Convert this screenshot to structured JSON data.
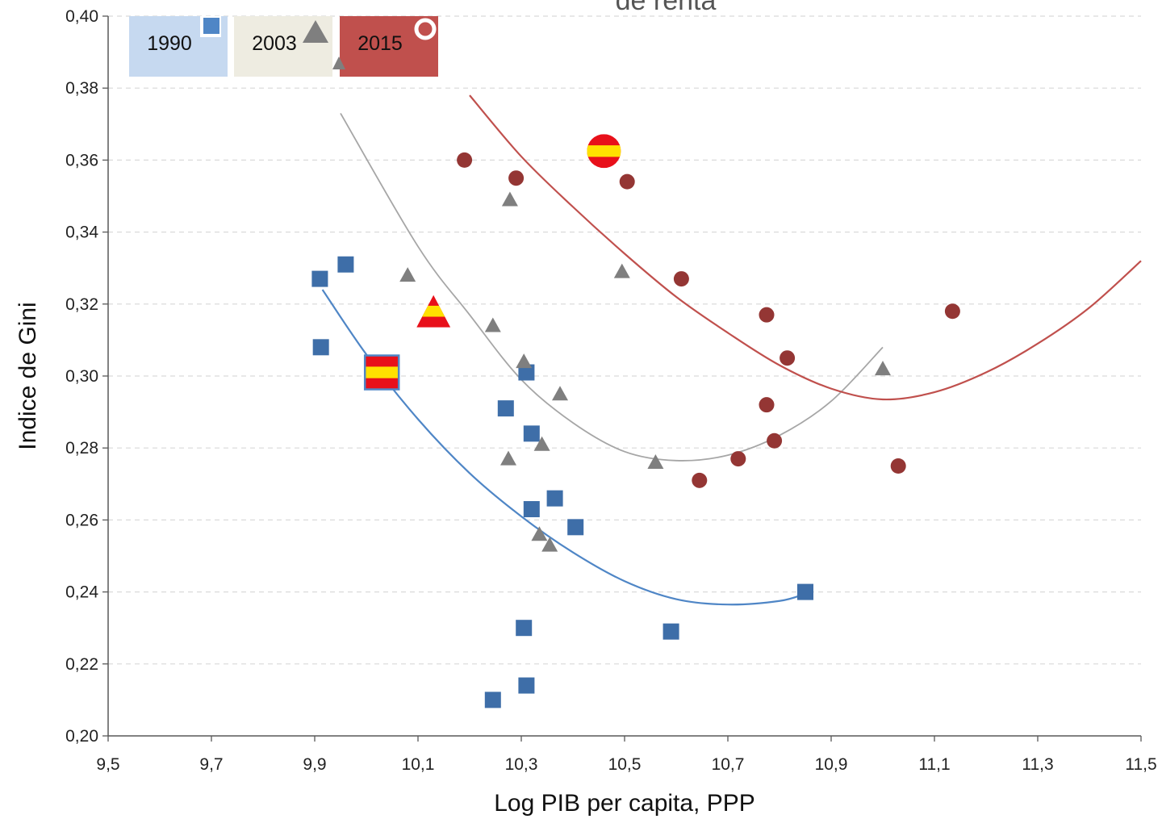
{
  "chart_data": {
    "type": "scatter",
    "title": "de renta",
    "xlabel": "Log PIB per capita, PPP",
    "ylabel": "Indice de Gini",
    "xlim": [
      9.5,
      11.5
    ],
    "ylim": [
      0.2,
      0.4
    ],
    "x_ticks": [
      "9,5",
      "9,7",
      "9,9",
      "10,1",
      "10,3",
      "10,5",
      "10,7",
      "10,9",
      "11,1",
      "11,3",
      "11,5"
    ],
    "y_ticks": [
      "0,20",
      "0,22",
      "0,24",
      "0,26",
      "0,28",
      "0,30",
      "0,32",
      "0,34",
      "0,36",
      "0,38",
      "0,40"
    ],
    "grid": "horizontal dashed",
    "legend_position": "top-left",
    "series": [
      {
        "name": "1990",
        "marker": "square",
        "color": "#3e6ea8",
        "points": [
          [
            9.91,
            0.327
          ],
          [
            9.96,
            0.331
          ],
          [
            9.912,
            0.308
          ],
          [
            10.31,
            0.301
          ],
          [
            10.27,
            0.291
          ],
          [
            10.32,
            0.284
          ],
          [
            10.365,
            0.266
          ],
          [
            10.32,
            0.263
          ],
          [
            10.405,
            0.258
          ],
          [
            10.85,
            0.24
          ],
          [
            10.305,
            0.23
          ],
          [
            10.59,
            0.229
          ],
          [
            10.31,
            0.214
          ],
          [
            10.245,
            0.21
          ]
        ],
        "trend": {
          "color": "#4f86c6",
          "x_range": [
            9.915,
            10.85
          ],
          "points": [
            [
              9.915,
              0.324
            ],
            [
              10.0,
              0.306
            ],
            [
              10.1,
              0.288
            ],
            [
              10.2,
              0.273
            ],
            [
              10.3,
              0.261
            ],
            [
              10.4,
              0.251
            ],
            [
              10.5,
              0.243
            ],
            [
              10.6,
              0.238
            ],
            [
              10.7,
              0.2365
            ],
            [
              10.8,
              0.2375
            ],
            [
              10.85,
              0.2395
            ]
          ]
        }
      },
      {
        "name": "2003",
        "marker": "triangle",
        "color": "#7f7f7f",
        "points": [
          [
            10.08,
            0.328
          ],
          [
            10.278,
            0.349
          ],
          [
            10.245,
            0.314
          ],
          [
            10.305,
            0.304
          ],
          [
            10.375,
            0.295
          ],
          [
            10.34,
            0.281
          ],
          [
            10.275,
            0.277
          ],
          [
            10.335,
            0.256
          ],
          [
            10.355,
            0.253
          ],
          [
            10.495,
            0.329
          ],
          [
            10.56,
            0.276
          ],
          [
            11.0,
            0.302
          ]
        ],
        "trend": {
          "color": "#a6a6a6",
          "x_range": [
            9.95,
            11.0
          ],
          "points": [
            [
              9.95,
              0.373
            ],
            [
              10.1,
              0.336
            ],
            [
              10.2,
              0.317
            ],
            [
              10.3,
              0.299
            ],
            [
              10.4,
              0.287
            ],
            [
              10.5,
              0.279
            ],
            [
              10.6,
              0.2765
            ],
            [
              10.7,
              0.278
            ],
            [
              10.8,
              0.2835
            ],
            [
              10.9,
              0.293
            ],
            [
              11.0,
              0.308
            ]
          ]
        }
      },
      {
        "name": "2015",
        "marker": "circle",
        "color": "#943634",
        "points": [
          [
            10.19,
            0.36
          ],
          [
            10.29,
            0.355
          ],
          [
            10.505,
            0.354
          ],
          [
            10.61,
            0.327
          ],
          [
            10.775,
            0.317
          ],
          [
            10.815,
            0.305
          ],
          [
            10.775,
            0.292
          ],
          [
            10.79,
            0.282
          ],
          [
            10.72,
            0.277
          ],
          [
            10.645,
            0.271
          ],
          [
            11.135,
            0.318
          ],
          [
            11.03,
            0.275
          ]
        ],
        "trend": {
          "color": "#c0504d",
          "x_range": [
            10.2,
            11.5
          ],
          "points": [
            [
              10.2,
              0.378
            ],
            [
              10.3,
              0.361
            ],
            [
              10.4,
              0.347
            ],
            [
              10.5,
              0.334
            ],
            [
              10.6,
              0.322
            ],
            [
              10.7,
              0.312
            ],
            [
              10.8,
              0.303
            ],
            [
              10.9,
              0.2965
            ],
            [
              11.0,
              0.2935
            ],
            [
              11.1,
              0.2955
            ],
            [
              11.2,
              0.301
            ],
            [
              11.3,
              0.309
            ],
            [
              11.4,
              0.319
            ],
            [
              11.5,
              0.332
            ]
          ]
        }
      }
    ],
    "highlights": [
      {
        "series": "1990",
        "marker": "spain-flag-square",
        "x": 10.03,
        "y": 0.301
      },
      {
        "series": "2003",
        "marker": "spain-flag-triangle",
        "x": 10.13,
        "y": 0.318
      },
      {
        "series": "2015",
        "marker": "spain-flag-circle",
        "x": 10.46,
        "y": 0.3625
      }
    ],
    "legend_entries": [
      {
        "label": "1990",
        "bg": "#c6d9f0",
        "marker": "square",
        "marker_color": "#4f86c6"
      },
      {
        "label": "2003",
        "bg": "#eeece1",
        "marker": "triangle",
        "marker_color": "#7f7f7f"
      },
      {
        "label": "2015",
        "bg": "#c0504d",
        "marker": "circle",
        "marker_color": "#c0504d"
      }
    ]
  }
}
